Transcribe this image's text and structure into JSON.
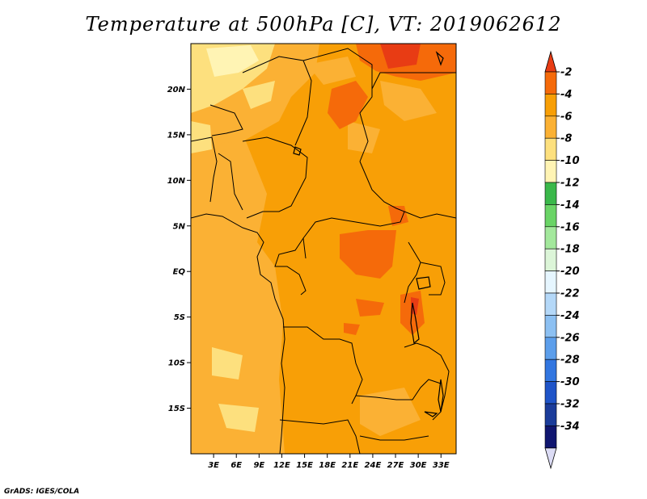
{
  "title": "Temperature at 500hPa [C], VT: 2019062612",
  "footer": "GrADS: IGES/COLA",
  "map": {
    "lon_range": [
      0,
      35
    ],
    "lat_range": [
      -20,
      25
    ],
    "lat_ticks": [
      {
        "value": 20,
        "label": "20N"
      },
      {
        "value": 15,
        "label": "15N"
      },
      {
        "value": 10,
        "label": "10N"
      },
      {
        "value": 5,
        "label": "5N"
      },
      {
        "value": 0,
        "label": "EQ"
      },
      {
        "value": -5,
        "label": "5S"
      },
      {
        "value": -10,
        "label": "10S"
      },
      {
        "value": -15,
        "label": "15S"
      }
    ],
    "lon_ticks": [
      {
        "value": 3,
        "label": "3E"
      },
      {
        "value": 6,
        "label": "6E"
      },
      {
        "value": 9,
        "label": "9E"
      },
      {
        "value": 12,
        "label": "12E"
      },
      {
        "value": 15,
        "label": "15E"
      },
      {
        "value": 18,
        "label": "18E"
      },
      {
        "value": 21,
        "label": "21E"
      },
      {
        "value": 24,
        "label": "24E"
      },
      {
        "value": 27,
        "label": "27E"
      },
      {
        "value": 30,
        "label": "30E"
      },
      {
        "value": 33,
        "label": "33E"
      }
    ]
  },
  "colorbar": {
    "labels": [
      "-2",
      "-4",
      "-6",
      "-8",
      "-10",
      "-12",
      "-14",
      "-16",
      "-18",
      "-20",
      "-22",
      "-24",
      "-26",
      "-28",
      "-30",
      "-32",
      "-34"
    ],
    "colors": [
      "#e83c14",
      "#f56a0a",
      "#f89f06",
      "#fbb134",
      "#fde07e",
      "#fff4b4",
      "#3ab84a",
      "#6ad466",
      "#a3e89c",
      "#dcf5d8",
      "#e6f6ff",
      "#b4d8f8",
      "#8cc0f2",
      "#5c9eeb",
      "#3276e0",
      "#1f54c8",
      "#1b3c9a",
      "#101670",
      "#dcdcf5"
    ]
  }
}
